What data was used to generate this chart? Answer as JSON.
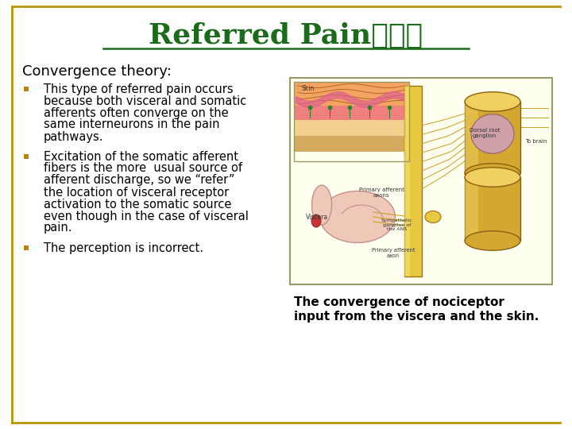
{
  "title_part1": "Referred Pain",
  "title_part2": "牛涉痛",
  "title_fontsize": 26,
  "title_color": "#1a6b1a",
  "subtitle": "Convergence theory:",
  "subtitle_fontsize": 13,
  "bullet_color": "#b8860b",
  "bullet_text_color": "#000000",
  "bullet_fontsize": 10.5,
  "bullet1_lines": [
    "This type of referred pain occurs",
    "because both visceral and somatic",
    "afferents often converge on the",
    "same interneurons in the pain",
    "pathways."
  ],
  "bullet2_lines": [
    "Excitation of the somatic afferent",
    "fibers is the more  usual source of",
    "afferent discharge, so we “refer”",
    "the location of visceral receptor",
    "activation to the somatic source",
    "even though in the case of visceral",
    "pain."
  ],
  "bullet3_line": "The perception is incorrect.",
  "caption_line1": "The convergence of nociceptor",
  "caption_line2": "input from the viscera and the skin.",
  "caption_fontsize": 11,
  "bg_color": "#ffffff",
  "border_color": "#b8960c",
  "slide_bg": "#ffffff"
}
